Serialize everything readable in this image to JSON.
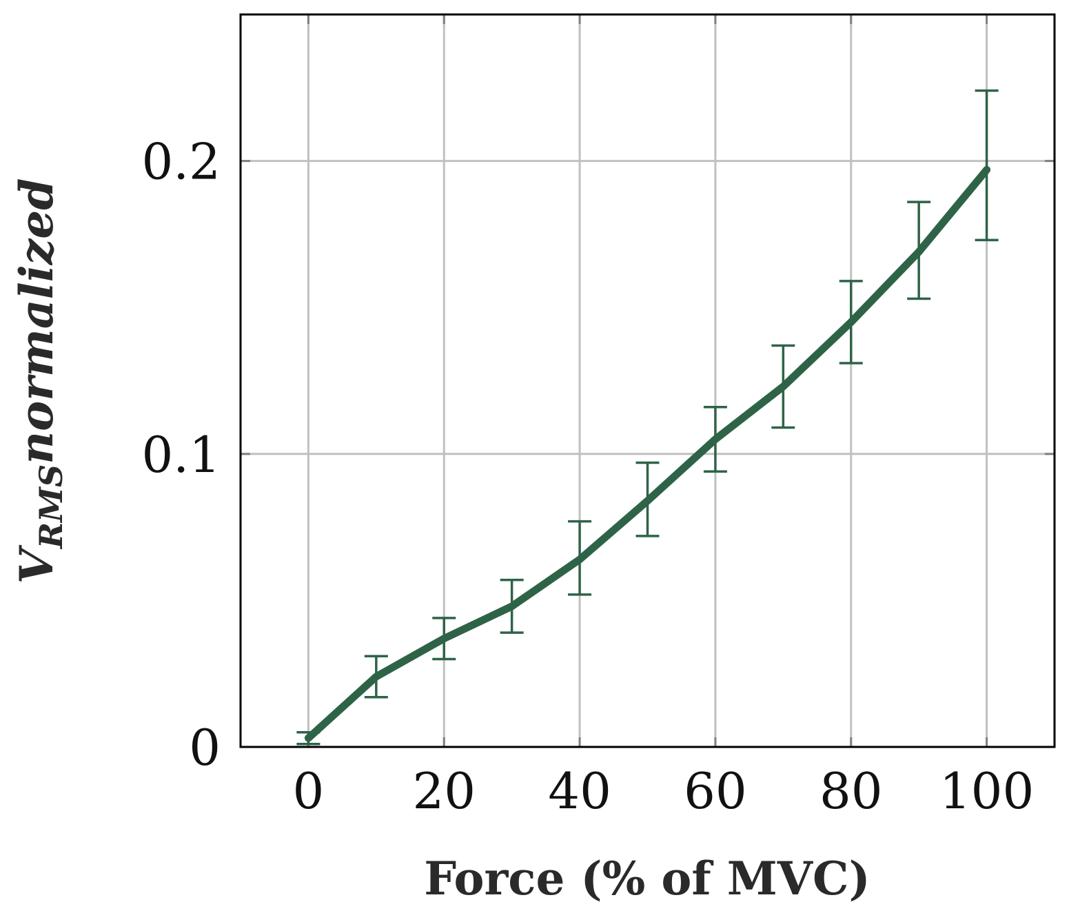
{
  "chart_data": {
    "type": "line",
    "title": "",
    "xlabel": "Force (% of MVC)",
    "ylabel_main": "V",
    "ylabel_sub": "RMS",
    "ylabel_rest": "normalized",
    "xlim": [
      -10,
      110
    ],
    "ylim": [
      0,
      0.25
    ],
    "grid": true,
    "x_ticks": [
      0,
      20,
      40,
      60,
      80,
      100
    ],
    "x_tick_labels": [
      "0",
      "20",
      "40",
      "60",
      "80",
      "100"
    ],
    "y_ticks": [
      0,
      0.1,
      0.2
    ],
    "y_tick_labels": [
      "0",
      "0.1",
      "0.2"
    ],
    "series": [
      {
        "name": "V_RMS normalized",
        "color": "#2e6348",
        "x": [
          0,
          10,
          20,
          30,
          40,
          50,
          60,
          70,
          80,
          90,
          100
        ],
        "y": [
          0.003,
          0.024,
          0.037,
          0.048,
          0.064,
          0.084,
          0.105,
          0.123,
          0.145,
          0.169,
          0.197
        ],
        "yerr_low": [
          0.002,
          0.007,
          0.007,
          0.009,
          0.012,
          0.012,
          0.011,
          0.014,
          0.014,
          0.016,
          0.024
        ],
        "yerr_high": [
          0.002,
          0.007,
          0.007,
          0.009,
          0.013,
          0.013,
          0.011,
          0.014,
          0.014,
          0.017,
          0.027
        ]
      }
    ]
  },
  "colors": {
    "grid": "#c0c0c0",
    "axis": "#000000",
    "tick": "#808080",
    "series": "#2e6348"
  }
}
